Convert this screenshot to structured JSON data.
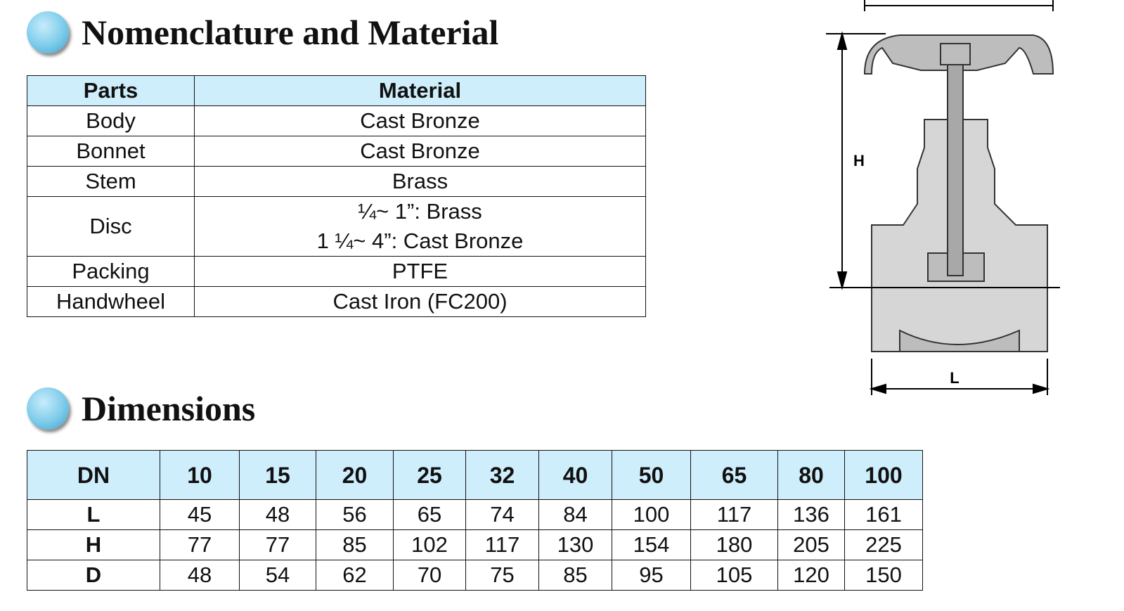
{
  "sections": [
    {
      "title": "Nomenclature and Material"
    },
    {
      "title": "Dimensions"
    }
  ],
  "material_table": {
    "header": [
      "Parts",
      "Material"
    ],
    "rows": [
      [
        "Body",
        "Cast Bronze"
      ],
      [
        "Bonnet",
        "Cast Bronze"
      ],
      [
        "Stem",
        "Brass"
      ],
      [
        "Disc",
        [
          "¼~ 1”: Brass",
          "1 ¼~ 4”: Cast Bronze"
        ]
      ],
      [
        "Packing",
        "PTFE"
      ],
      [
        "Handwheel",
        "Cast Iron (FC200)"
      ]
    ]
  },
  "dimensions_table": {
    "header": [
      "DN",
      10,
      15,
      20,
      25,
      32,
      40,
      50,
      65,
      80,
      100
    ],
    "rows": [
      [
        "L",
        45,
        48,
        56,
        65,
        74,
        84,
        100,
        117,
        136,
        161
      ],
      [
        "H",
        77,
        77,
        85,
        102,
        117,
        130,
        154,
        180,
        205,
        225
      ],
      [
        "D",
        48,
        54,
        62,
        70,
        75,
        85,
        95,
        105,
        120,
        150
      ]
    ]
  },
  "diagram": {
    "labels": [
      "H",
      "L"
    ]
  }
}
